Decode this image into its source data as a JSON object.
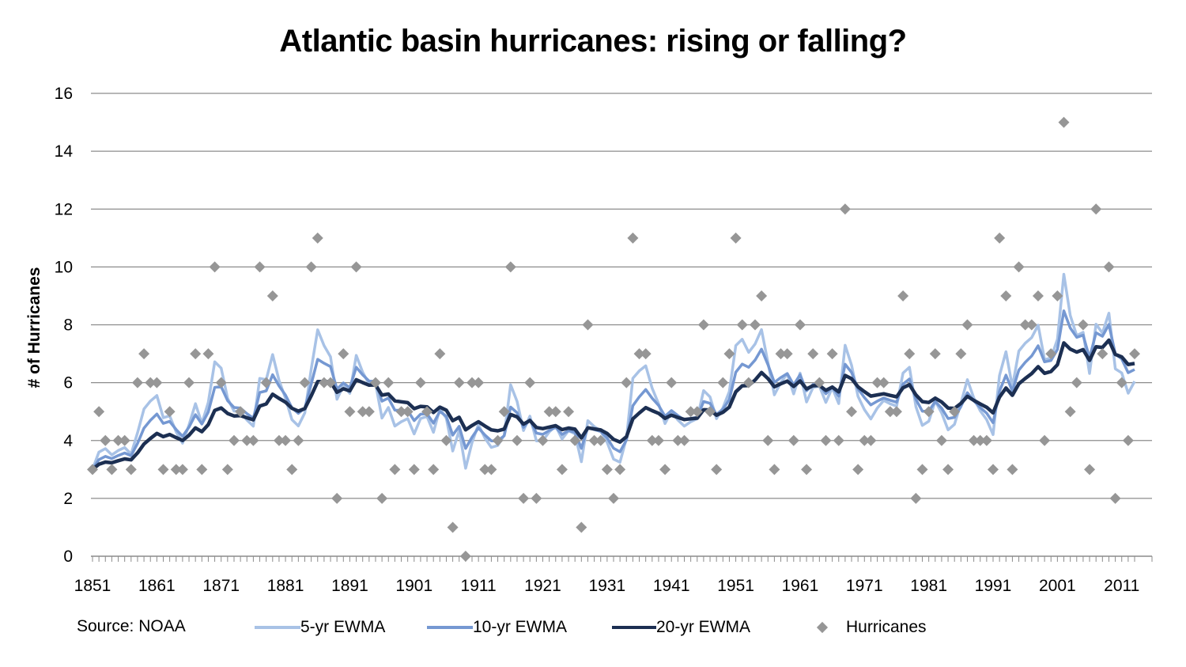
{
  "chart_data": {
    "type": "line",
    "title": "Atlantic basin hurricanes: rising or falling?",
    "ylabel": "# of Hurricanes",
    "xlabel": "",
    "ylim": [
      0,
      16
    ],
    "yticks": [
      0,
      2,
      4,
      6,
      8,
      10,
      12,
      14,
      16
    ],
    "xlim": [
      1851,
      2015
    ],
    "xticks": [
      1851,
      1861,
      1871,
      1881,
      1891,
      1901,
      1911,
      1921,
      1931,
      1941,
      1951,
      1961,
      1971,
      1981,
      1991,
      2001,
      2011
    ],
    "grid": true,
    "source": "Source: NOAA",
    "legend": [
      {
        "name": "5-yr EWMA",
        "color": "#a8c2e6",
        "marker": "line"
      },
      {
        "name": "10-yr EWMA",
        "color": "#7598d2",
        "marker": "line"
      },
      {
        "name": "20-yr EWMA",
        "color": "#1c2f52",
        "marker": "line"
      },
      {
        "name": "Hurricanes",
        "color": "#969696",
        "marker": "diamond"
      }
    ],
    "hurricanes": {
      "start_year": 1851,
      "values": [
        3,
        5,
        4,
        3,
        4,
        4,
        3,
        6,
        7,
        6,
        6,
        3,
        5,
        3,
        3,
        6,
        7,
        3,
        7,
        10,
        6,
        3,
        4,
        5,
        4,
        4,
        10,
        6,
        9,
        4,
        4,
        3,
        4,
        6,
        10,
        11,
        6,
        6,
        2,
        7,
        5,
        10,
        5,
        5,
        6,
        2,
        6,
        3,
        5,
        5,
        3,
        6,
        5,
        3,
        7,
        4,
        1,
        6,
        0,
        6,
        6,
        3,
        3,
        4,
        5,
        10,
        4,
        2,
        6,
        2,
        4,
        5,
        5,
        3,
        5,
        4,
        1,
        8,
        4,
        4,
        3,
        2,
        3,
        6,
        11,
        7,
        7,
        4,
        4,
        3,
        6,
        4,
        4,
        5,
        5,
        8,
        5,
        3,
        6,
        7,
        11,
        8,
        6,
        8,
        9,
        4,
        3,
        7,
        7,
        4,
        8,
        3,
        7,
        6,
        4,
        7,
        4,
        12,
        5,
        3,
        4,
        4,
        6,
        6,
        5,
        5,
        9,
        7,
        2,
        3,
        5,
        7,
        4,
        3,
        5,
        7,
        8,
        4,
        4,
        4,
        3,
        11,
        9,
        3,
        10,
        8,
        8,
        9,
        4,
        7,
        9,
        15,
        5,
        6,
        8,
        3,
        12,
        7,
        10,
        2,
        6,
        4,
        7
      ]
    },
    "series": [
      {
        "name": "5-yr EWMA",
        "color": "#a8c2e6",
        "alpha": 0.3
      },
      {
        "name": "10-yr EWMA",
        "color": "#7598d2",
        "alpha": 0.17
      },
      {
        "name": "20-yr EWMA",
        "color": "#1c2f52",
        "alpha": 0.09
      }
    ]
  }
}
